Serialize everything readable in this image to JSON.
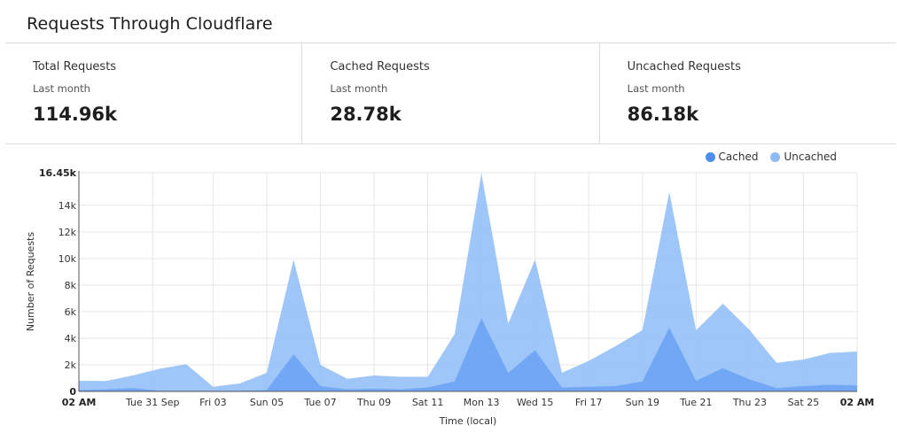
{
  "header": {
    "title": "Requests Through Cloudflare"
  },
  "stats": [
    {
      "label": "Total Requests",
      "period": "Last month",
      "value": "114.96k"
    },
    {
      "label": "Cached Requests",
      "period": "Last month",
      "value": "28.78k"
    },
    {
      "label": "Uncached Requests",
      "period": "Last month",
      "value": "86.18k"
    }
  ],
  "legend": [
    {
      "label": "Cached",
      "color": "#4b8ef0"
    },
    {
      "label": "Uncached",
      "color": "#8ebcf8"
    }
  ],
  "chart_data": {
    "type": "area",
    "ylabel": "Number of Requests",
    "xlabel": "Time (local)",
    "ylim": [
      0,
      16450
    ],
    "yticks": [
      "0",
      "2k",
      "4k",
      "6k",
      "8k",
      "10k",
      "12k",
      "14k",
      "16.45k"
    ],
    "ytick_values": [
      0,
      2000,
      4000,
      6000,
      8000,
      10000,
      12000,
      14000,
      16450
    ],
    "xticks": [
      "02 AM",
      "Tue 31 Sep",
      "Fri 03",
      "Sun 05",
      "Tue 07",
      "Thu 09",
      "Sat 11",
      "Mon 13",
      "Wed 15",
      "Fri 17",
      "Sun 19",
      "Tue 21",
      "Thu 23",
      "Sat 25",
      "02 AM"
    ],
    "xtick_values": [
      0,
      2.75,
      5,
      7,
      9,
      11,
      13,
      15,
      17,
      19,
      21,
      23,
      25,
      27,
      29
    ],
    "grid": true,
    "legend_position": "top-right",
    "series": [
      {
        "name": "Uncached",
        "color": "#8ebcf8",
        "x": [
          0,
          1,
          2,
          3,
          4,
          5,
          6,
          7,
          8,
          9,
          10,
          11,
          12,
          13,
          14,
          15,
          16,
          17,
          18,
          19,
          20,
          21,
          22,
          23,
          24,
          25,
          26,
          27,
          28,
          29
        ],
        "values": [
          800,
          780,
          1200,
          1700,
          2050,
          350,
          600,
          1400,
          9900,
          2000,
          950,
          1200,
          1100,
          1100,
          4300,
          16400,
          5100,
          9900,
          1400,
          2300,
          3400,
          4600,
          15000,
          4600,
          6600,
          4600,
          2150,
          2400,
          2900,
          3000
        ]
      },
      {
        "name": "Cached",
        "color": "#4b8ef0",
        "x": [
          0,
          1,
          2,
          3,
          4,
          5,
          6,
          7,
          8,
          9,
          10,
          11,
          12,
          13,
          14,
          15,
          16,
          17,
          18,
          19,
          20,
          21,
          22,
          23,
          24,
          25,
          26,
          27,
          28,
          29
        ],
        "values": [
          100,
          150,
          250,
          50,
          50,
          50,
          50,
          100,
          2800,
          400,
          150,
          200,
          150,
          300,
          750,
          5500,
          1400,
          3100,
          300,
          350,
          400,
          750,
          4800,
          800,
          1750,
          900,
          250,
          400,
          500,
          450
        ]
      }
    ]
  }
}
